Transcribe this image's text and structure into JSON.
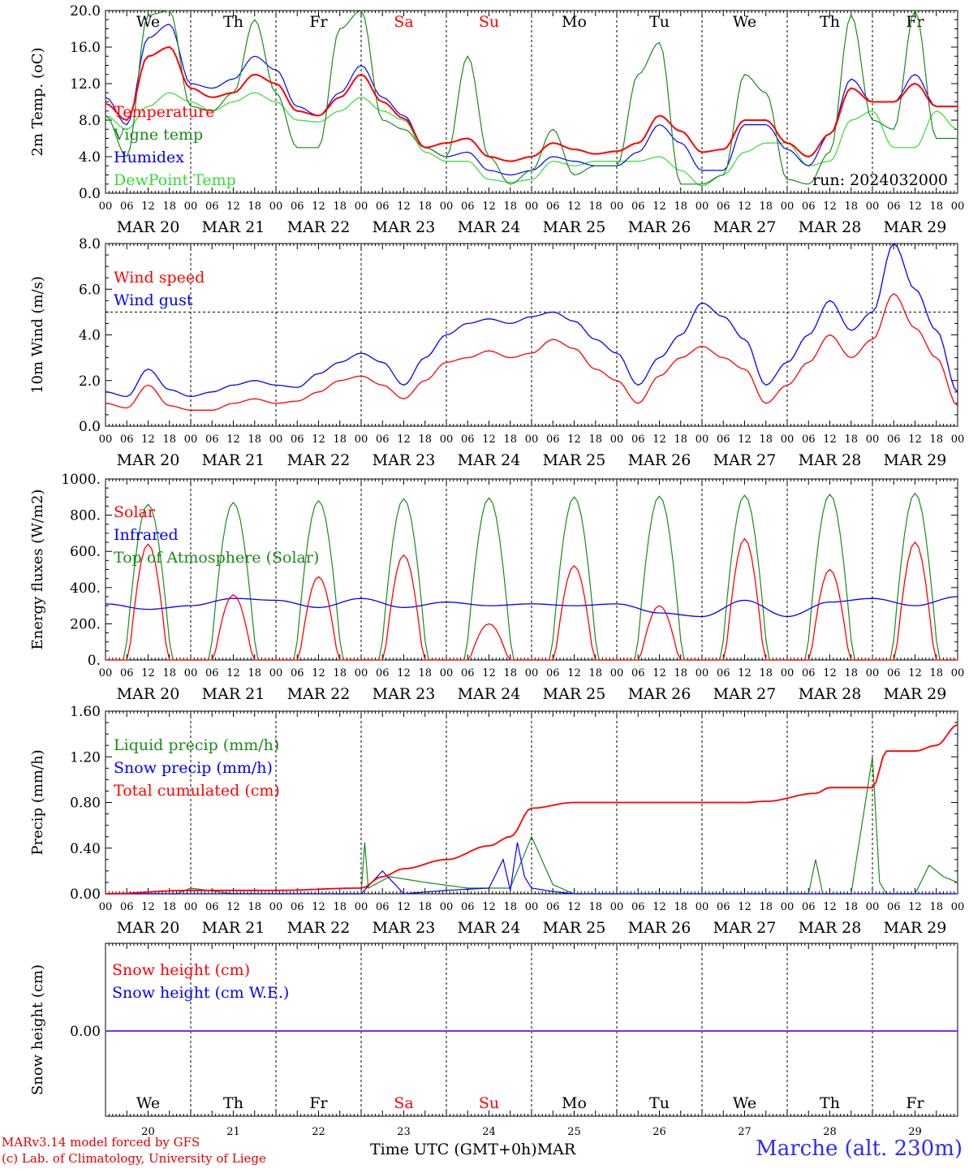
{
  "days": [
    "MAR 20",
    "MAR 21",
    "MAR 22",
    "MAR 23",
    "MAR 24",
    "MAR 25",
    "MAR 26",
    "MAR 27",
    "MAR 28",
    "MAR 29"
  ],
  "hours": [
    "00",
    "06",
    "12",
    "18"
  ],
  "weekdays": [
    {
      "label": "We",
      "weekend": false
    },
    {
      "label": "Th",
      "weekend": false
    },
    {
      "label": "Fr",
      "weekend": false
    },
    {
      "label": "Sa",
      "weekend": true
    },
    {
      "label": "Su",
      "weekend": true
    },
    {
      "label": "Mo",
      "weekend": false
    },
    {
      "label": "Tu",
      "weekend": false
    },
    {
      "label": "We",
      "weekend": false
    },
    {
      "label": "Th",
      "weekend": false
    },
    {
      "label": "Fr",
      "weekend": false
    }
  ],
  "day_numbers": [
    "20",
    "21",
    "22",
    "23",
    "24",
    "25",
    "26",
    "27",
    "28",
    "29"
  ],
  "run_label": "run: 2024032000",
  "footer": {
    "model": "MARv3.14 model forced by GFS",
    "credit": "(c) Lab. of Climatology, University of Liege",
    "xunit": "Time UTC (GMT+0h)",
    "month": "MAR",
    "station": "Marche (alt. 230m)"
  },
  "colors": {
    "red": "#ff0000",
    "green": "#1a8a1a",
    "blue": "#0000ff",
    "lightgreen": "#33dd33",
    "purple": "#8a2be2",
    "weekend": "#ff0000"
  },
  "chart_data": [
    {
      "type": "line",
      "ylabel": "2m Temp. (oC)",
      "ylim": [
        0,
        20
      ],
      "ticks": [
        "0.0",
        "4.0",
        "8.0",
        "12.0",
        "16.0",
        "20.0"
      ],
      "tick_values": [
        0,
        4,
        8,
        12,
        16,
        20
      ],
      "x_hours": [
        0,
        6,
        12,
        18,
        24,
        30,
        36,
        42,
        48,
        54,
        60,
        66,
        72,
        78,
        84,
        90,
        96,
        102,
        108,
        114,
        120,
        126,
        132,
        138,
        144,
        150,
        156,
        162,
        168,
        174,
        180,
        186,
        192,
        198,
        204,
        210,
        216,
        222,
        228,
        234,
        240
      ],
      "series": [
        {
          "name": "Temperature",
          "color": "red",
          "values": [
            9.8,
            8.0,
            15.0,
            16.0,
            11.5,
            10.5,
            11.0,
            13.0,
            12.0,
            9.0,
            8.5,
            10.5,
            13.0,
            10.0,
            8.2,
            5.0,
            5.5,
            6.0,
            4.0,
            3.5,
            4.0,
            5.5,
            4.8,
            4.3,
            4.6,
            5.5,
            8.5,
            6.8,
            4.5,
            4.8,
            8.0,
            8.0,
            5.5,
            4.0,
            6.5,
            11.5,
            10.0,
            10.0,
            12.0,
            9.5,
            9.5
          ]
        },
        {
          "name": "Vigne temp",
          "color": "green",
          "values": [
            8.5,
            4.0,
            19.5,
            20.0,
            9.5,
            9.0,
            11.0,
            19.0,
            11.0,
            5.0,
            5.0,
            18.0,
            20.0,
            8.0,
            7.0,
            5.0,
            4.0,
            15.0,
            4.0,
            1.0,
            2.5,
            7.0,
            2.0,
            3.0,
            3.0,
            13.0,
            16.5,
            1.0,
            1.0,
            2.0,
            13.0,
            11.0,
            1.5,
            1.0,
            4.5,
            19.5,
            8.0,
            7.0,
            20.0,
            6.0,
            6.0
          ]
        },
        {
          "name": "Humidex",
          "color": "blue",
          "values": [
            10.5,
            7.5,
            17.0,
            18.5,
            12.0,
            11.5,
            12.5,
            15.0,
            13.5,
            9.5,
            8.5,
            11.0,
            14.0,
            10.5,
            8.5,
            5.0,
            4.0,
            4.5,
            2.5,
            2.0,
            2.5,
            4.0,
            3.5,
            3.0,
            3.0,
            4.5,
            7.5,
            5.5,
            2.5,
            2.5,
            7.5,
            7.5,
            4.8,
            3.0,
            6.5,
            12.5,
            10.0,
            10.0,
            13.0,
            9.5,
            9.5
          ]
        },
        {
          "name": "DewPoint Temp",
          "color": "lightgreen",
          "values": [
            8.5,
            7.0,
            9.5,
            11.0,
            10.0,
            9.0,
            10.0,
            11.0,
            10.0,
            8.0,
            7.8,
            9.0,
            10.5,
            9.0,
            8.0,
            4.5,
            3.5,
            3.5,
            1.5,
            1.2,
            1.5,
            3.5,
            3.0,
            3.5,
            3.5,
            3.5,
            4.0,
            2.5,
            0.8,
            2.0,
            4.5,
            5.5,
            5.5,
            3.0,
            3.5,
            8.0,
            9.0,
            5.0,
            5.0,
            9.0,
            7.0
          ]
        }
      ]
    },
    {
      "type": "line",
      "ylabel": "10m Wind (m/s)",
      "ylim": [
        0,
        8
      ],
      "ticks": [
        "0.0",
        "2.0",
        "4.0",
        "6.0",
        "8.0"
      ],
      "tick_values": [
        0,
        2,
        4,
        6,
        8
      ],
      "reference_line": 5,
      "x_hours": [
        0,
        6,
        12,
        18,
        24,
        30,
        36,
        42,
        48,
        54,
        60,
        66,
        72,
        78,
        84,
        90,
        96,
        102,
        108,
        114,
        120,
        126,
        132,
        138,
        144,
        150,
        156,
        162,
        168,
        174,
        180,
        186,
        192,
        198,
        204,
        210,
        216,
        222,
        228,
        234,
        240
      ],
      "series": [
        {
          "name": "Wind speed",
          "color": "red",
          "values": [
            1.0,
            0.8,
            1.8,
            0.9,
            0.7,
            0.7,
            1.0,
            1.2,
            1.0,
            1.1,
            1.5,
            2.0,
            2.2,
            1.8,
            1.2,
            2.0,
            2.8,
            3.0,
            3.3,
            3.0,
            3.2,
            3.8,
            3.4,
            2.5,
            2.0,
            1.0,
            2.2,
            3.0,
            3.5,
            3.0,
            2.5,
            1.0,
            1.8,
            2.8,
            4.0,
            3.0,
            3.8,
            5.8,
            4.3,
            3.0,
            0.9
          ]
        },
        {
          "name": "Wind gust",
          "color": "blue",
          "values": [
            1.5,
            1.3,
            2.5,
            1.6,
            1.3,
            1.5,
            1.8,
            2.0,
            1.8,
            1.7,
            2.3,
            2.8,
            3.2,
            2.8,
            1.8,
            3.0,
            4.0,
            4.5,
            4.7,
            4.5,
            4.8,
            5.0,
            4.6,
            3.8,
            3.2,
            1.8,
            3.0,
            4.0,
            5.4,
            4.8,
            3.8,
            1.8,
            2.8,
            4.0,
            5.5,
            4.2,
            5.0,
            8.0,
            6.0,
            4.2,
            1.5
          ]
        }
      ]
    },
    {
      "type": "line",
      "ylabel": "Energy fluxes (W/m2)",
      "ylim": [
        0,
        1000
      ],
      "ticks": [
        "0.",
        "200.",
        "400.",
        "600.",
        "800.",
        "1000."
      ],
      "tick_values": [
        0,
        200,
        400,
        600,
        800,
        1000
      ],
      "series": [
        {
          "name": "Solar",
          "color": "red",
          "peaks": [
            640,
            360,
            460,
            580,
            200,
            520,
            300,
            670,
            500,
            650
          ]
        },
        {
          "name": "Infrared",
          "color": "blue",
          "x_hours": [
            0,
            12,
            24,
            36,
            48,
            60,
            72,
            84,
            96,
            108,
            120,
            132,
            144,
            156,
            168,
            180,
            192,
            204,
            216,
            228,
            240
          ],
          "values": [
            310,
            280,
            300,
            340,
            330,
            290,
            340,
            290,
            320,
            300,
            310,
            300,
            310,
            260,
            240,
            330,
            240,
            320,
            340,
            300,
            350
          ]
        },
        {
          "name": "Top of Atmosphere (Solar)",
          "color": "green",
          "peaks": [
            860,
            870,
            880,
            890,
            895,
            900,
            905,
            910,
            915,
            920
          ]
        }
      ]
    },
    {
      "type": "line",
      "ylabel": "Precip (mm/h)",
      "ylim": [
        0,
        1.6
      ],
      "ticks": [
        "0.00",
        "0.40",
        "0.80",
        "1.20",
        "1.60"
      ],
      "tick_values": [
        0,
        0.4,
        0.8,
        1.2,
        1.6
      ],
      "series": [
        {
          "name": "Liquid precip (mm/h)",
          "color": "green",
          "x_hours": [
            0,
            12,
            20,
            24,
            36,
            48,
            66,
            72,
            73,
            74,
            80,
            90,
            102,
            114,
            120,
            126,
            132,
            180,
            198,
            200,
            202,
            210,
            216,
            218,
            220,
            228,
            232,
            234,
            236,
            240
          ],
          "values": [
            0,
            0,
            0,
            0.05,
            0,
            0,
            0,
            0,
            0.45,
            0.05,
            0.15,
            0.1,
            0.05,
            0.05,
            0.5,
            0.08,
            0,
            0,
            0,
            0.3,
            0,
            0,
            1.2,
            0.1,
            0,
            0,
            0.25,
            0.2,
            0.15,
            0.1
          ]
        },
        {
          "name": "Snow precip (mm/h)",
          "color": "blue",
          "x_hours": [
            0,
            66,
            72,
            78,
            84,
            96,
            108,
            112,
            114,
            116,
            118,
            120,
            126,
            132,
            240
          ],
          "values": [
            0,
            0,
            0,
            0.2,
            0,
            0.03,
            0.05,
            0.3,
            0.03,
            0.45,
            0.15,
            0.05,
            0.02,
            0,
            0
          ]
        },
        {
          "name": "Total cumulated (cm)",
          "color": "red",
          "x_hours": [
            0,
            24,
            48,
            72,
            78,
            84,
            96,
            108,
            114,
            120,
            132,
            144,
            168,
            180,
            186,
            200,
            204,
            216,
            220,
            228,
            234,
            240
          ],
          "values": [
            0,
            0.03,
            0.03,
            0.05,
            0.15,
            0.22,
            0.3,
            0.42,
            0.5,
            0.75,
            0.8,
            0.8,
            0.8,
            0.8,
            0.81,
            0.88,
            0.93,
            0.93,
            1.25,
            1.25,
            1.3,
            1.48
          ]
        }
      ]
    },
    {
      "type": "line",
      "ylabel": "Snow height (cm)",
      "ticks": [
        "0.00"
      ],
      "tick_values": [
        0
      ],
      "series": [
        {
          "name": "Snow height (cm)",
          "color": "red",
          "values": [
            0,
            0
          ]
        },
        {
          "name": "Snow height (cm W.E.)",
          "color": "blue",
          "values": [
            0,
            0
          ]
        }
      ]
    }
  ]
}
